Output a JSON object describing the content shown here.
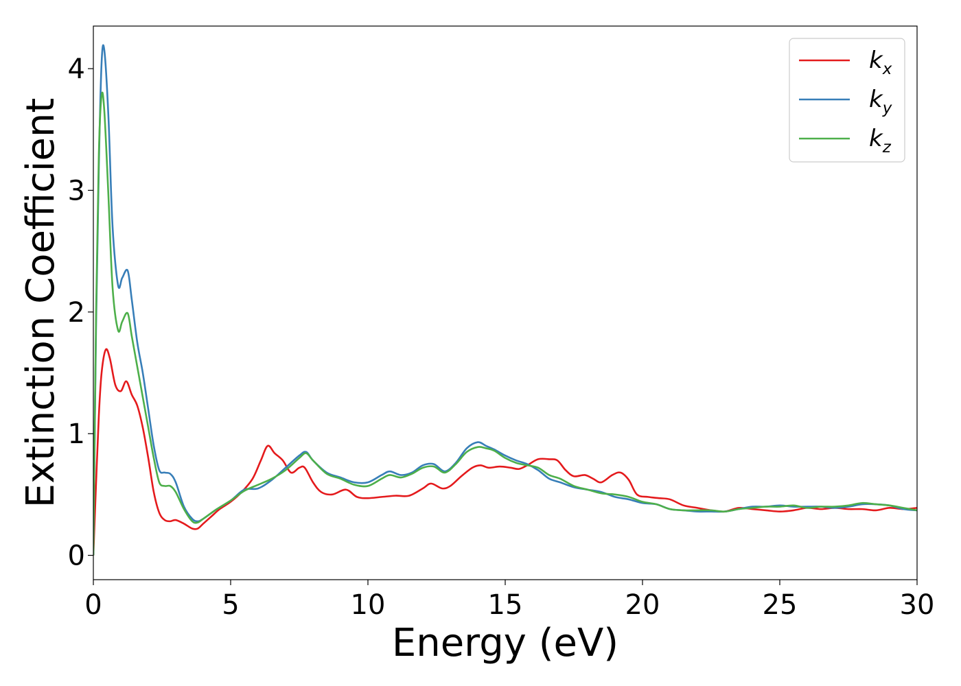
{
  "chart_data": {
    "type": "line",
    "title": "",
    "xlabel": "Energy (eV)",
    "ylabel": "Extinction Coefficient",
    "xlim": [
      0,
      30
    ],
    "ylim": [
      -0.2,
      4.35
    ],
    "xticks": [
      0,
      5,
      10,
      15,
      20,
      25,
      30
    ],
    "yticks": [
      0,
      1,
      2,
      3,
      4
    ],
    "grid": false,
    "legend_position": "top-right",
    "series": [
      {
        "name": "k",
        "sub": "x",
        "color": "#e41a1c",
        "x": [
          0,
          0.1,
          0.2,
          0.3,
          0.45,
          0.6,
          0.8,
          1.0,
          1.2,
          1.4,
          1.6,
          1.8,
          2.0,
          2.2,
          2.4,
          2.6,
          2.8,
          3.0,
          3.3,
          3.6,
          3.8,
          4.0,
          4.3,
          4.6,
          5.0,
          5.4,
          5.8,
          6.1,
          6.35,
          6.6,
          6.9,
          7.2,
          7.5,
          7.7,
          8.0,
          8.3,
          8.7,
          9.2,
          9.6,
          10.0,
          10.5,
          11.0,
          11.5,
          12.0,
          12.3,
          12.7,
          13.0,
          13.4,
          13.8,
          14.1,
          14.4,
          14.8,
          15.2,
          15.5,
          15.8,
          16.2,
          16.6,
          16.9,
          17.2,
          17.5,
          17.9,
          18.2,
          18.5,
          18.9,
          19.2,
          19.5,
          19.8,
          20.2,
          20.6,
          21.0,
          21.5,
          22.0,
          22.5,
          23.0,
          23.5,
          24.0,
          24.5,
          25.0,
          25.5,
          26.0,
          26.5,
          27.0,
          27.5,
          28.0,
          28.5,
          29.0,
          29.5,
          30.0
        ],
        "y": [
          0.0,
          0.6,
          1.15,
          1.5,
          1.69,
          1.62,
          1.4,
          1.35,
          1.43,
          1.32,
          1.23,
          1.05,
          0.8,
          0.52,
          0.35,
          0.29,
          0.28,
          0.29,
          0.26,
          0.22,
          0.22,
          0.26,
          0.32,
          0.38,
          0.44,
          0.52,
          0.63,
          0.78,
          0.9,
          0.84,
          0.78,
          0.68,
          0.72,
          0.72,
          0.6,
          0.52,
          0.5,
          0.54,
          0.48,
          0.47,
          0.48,
          0.49,
          0.49,
          0.55,
          0.59,
          0.55,
          0.57,
          0.65,
          0.72,
          0.74,
          0.72,
          0.73,
          0.72,
          0.71,
          0.74,
          0.79,
          0.79,
          0.78,
          0.7,
          0.65,
          0.66,
          0.63,
          0.6,
          0.66,
          0.68,
          0.62,
          0.5,
          0.48,
          0.47,
          0.46,
          0.41,
          0.39,
          0.37,
          0.36,
          0.39,
          0.38,
          0.37,
          0.36,
          0.37,
          0.39,
          0.38,
          0.39,
          0.38,
          0.38,
          0.37,
          0.39,
          0.38,
          0.39
        ]
      },
      {
        "name": "k",
        "sub": "y",
        "color": "#377eb8",
        "x": [
          0,
          0.1,
          0.2,
          0.3,
          0.4,
          0.55,
          0.7,
          0.9,
          1.05,
          1.25,
          1.4,
          1.6,
          1.8,
          2.0,
          2.2,
          2.4,
          2.6,
          2.8,
          3.0,
          3.3,
          3.6,
          3.8,
          4.0,
          4.5,
          5.0,
          5.5,
          6.0,
          6.5,
          7.0,
          7.5,
          7.75,
          8.0,
          8.5,
          9.0,
          9.5,
          10.0,
          10.5,
          10.8,
          11.2,
          11.6,
          12.0,
          12.4,
          12.8,
          13.2,
          13.6,
          14.0,
          14.3,
          14.6,
          15.0,
          15.4,
          15.8,
          16.2,
          16.6,
          17.0,
          17.5,
          18.0,
          18.5,
          19.0,
          19.5,
          20.0,
          20.5,
          21.0,
          21.5,
          22.0,
          22.5,
          23.0,
          23.5,
          24.0,
          24.5,
          25.0,
          25.5,
          26.0,
          26.5,
          27.0,
          27.5,
          28.0,
          28.5,
          29.0,
          29.5,
          30.0
        ],
        "y": [
          0.0,
          1.9,
          3.2,
          4.05,
          4.15,
          3.6,
          2.7,
          2.22,
          2.28,
          2.34,
          2.1,
          1.75,
          1.5,
          1.2,
          0.9,
          0.7,
          0.68,
          0.67,
          0.6,
          0.4,
          0.3,
          0.28,
          0.3,
          0.38,
          0.45,
          0.54,
          0.55,
          0.62,
          0.72,
          0.82,
          0.85,
          0.78,
          0.68,
          0.64,
          0.6,
          0.6,
          0.66,
          0.69,
          0.66,
          0.68,
          0.74,
          0.75,
          0.69,
          0.76,
          0.88,
          0.93,
          0.9,
          0.87,
          0.82,
          0.78,
          0.75,
          0.7,
          0.63,
          0.6,
          0.56,
          0.54,
          0.52,
          0.48,
          0.46,
          0.43,
          0.42,
          0.38,
          0.37,
          0.36,
          0.36,
          0.36,
          0.38,
          0.4,
          0.4,
          0.41,
          0.4,
          0.4,
          0.4,
          0.39,
          0.4,
          0.42,
          0.42,
          0.41,
          0.38,
          0.37
        ]
      },
      {
        "name": "k",
        "sub": "z",
        "color": "#4daf4a",
        "x": [
          0,
          0.1,
          0.2,
          0.3,
          0.4,
          0.55,
          0.7,
          0.9,
          1.05,
          1.25,
          1.4,
          1.6,
          1.8,
          2.0,
          2.2,
          2.4,
          2.6,
          2.8,
          3.0,
          3.3,
          3.6,
          3.8,
          4.0,
          4.5,
          5.0,
          5.5,
          6.0,
          6.5,
          7.0,
          7.5,
          7.75,
          8.0,
          8.5,
          9.0,
          9.5,
          10.0,
          10.5,
          10.8,
          11.2,
          11.6,
          12.0,
          12.4,
          12.8,
          13.2,
          13.6,
          14.0,
          14.3,
          14.6,
          15.0,
          15.4,
          15.8,
          16.2,
          16.6,
          17.0,
          17.5,
          18.0,
          18.5,
          19.0,
          19.5,
          20.0,
          20.5,
          21.0,
          21.5,
          22.0,
          22.5,
          23.0,
          23.5,
          24.0,
          24.5,
          25.0,
          25.5,
          26.0,
          26.5,
          27.0,
          27.5,
          28.0,
          28.5,
          29.0,
          29.5,
          30.0
        ],
        "y": [
          0.0,
          2.0,
          3.3,
          3.78,
          3.65,
          2.95,
          2.2,
          1.85,
          1.92,
          1.99,
          1.8,
          1.55,
          1.3,
          1.05,
          0.8,
          0.6,
          0.57,
          0.57,
          0.52,
          0.38,
          0.28,
          0.27,
          0.3,
          0.38,
          0.45,
          0.53,
          0.58,
          0.63,
          0.7,
          0.8,
          0.84,
          0.78,
          0.67,
          0.63,
          0.58,
          0.57,
          0.63,
          0.66,
          0.64,
          0.67,
          0.72,
          0.73,
          0.68,
          0.75,
          0.85,
          0.89,
          0.88,
          0.86,
          0.8,
          0.76,
          0.74,
          0.72,
          0.66,
          0.63,
          0.57,
          0.54,
          0.51,
          0.5,
          0.48,
          0.44,
          0.42,
          0.38,
          0.37,
          0.37,
          0.37,
          0.36,
          0.38,
          0.39,
          0.4,
          0.4,
          0.41,
          0.39,
          0.4,
          0.4,
          0.41,
          0.43,
          0.42,
          0.41,
          0.39,
          0.37
        ]
      }
    ]
  }
}
